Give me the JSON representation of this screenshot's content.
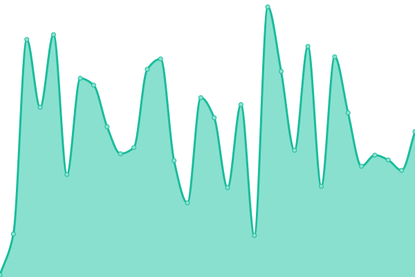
{
  "chart_data": {
    "type": "area",
    "title": "",
    "xlabel": "",
    "ylabel": "",
    "grid": false,
    "legend": "none",
    "x": [
      0,
      1,
      2,
      3,
      4,
      5,
      6,
      7,
      8,
      9,
      10,
      11,
      12,
      13,
      14,
      15,
      16,
      17,
      18,
      19,
      20,
      21,
      22,
      23,
      24,
      25,
      26,
      27,
      28,
      29,
      30,
      31
    ],
    "values": [
      3,
      62,
      343,
      245,
      350,
      148,
      287,
      277,
      217,
      178,
      187,
      300,
      315,
      168,
      107,
      259,
      230,
      129,
      249,
      60,
      390,
      297,
      183,
      333,
      131,
      318,
      237,
      160,
      176,
      169,
      154,
      210
    ],
    "ylim": [
      0,
      400
    ],
    "smooth": true,
    "colors": {
      "line": "#1abc9c",
      "fill": "#89e0cf",
      "marker_fill": "#89e0cf"
    }
  }
}
